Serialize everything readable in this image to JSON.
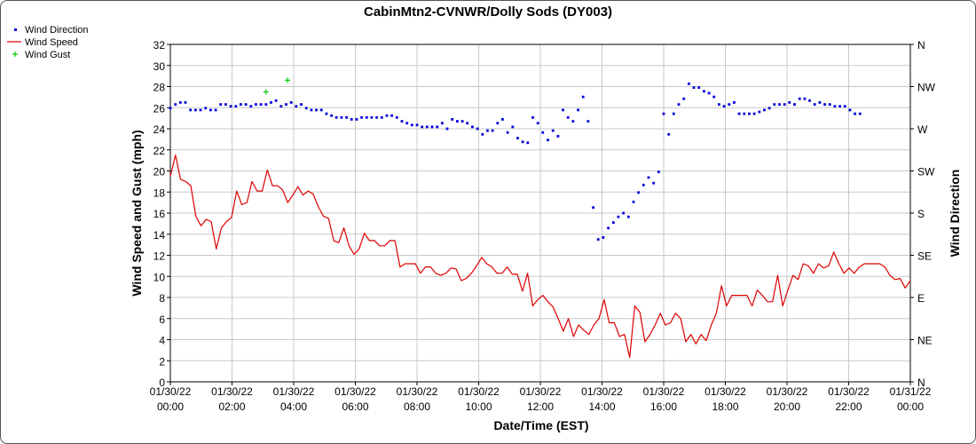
{
  "colors": {
    "direction": "#0000dd",
    "speed": "#dd0000",
    "gust": "#00cc00",
    "grid": "#c8c8c8"
  },
  "chart_data": {
    "type": "line",
    "title": "CabinMtn2-CVNWR/Dolly Sods (DY003)",
    "xlabel": "Date/Time (EST)",
    "ylabel": "Wind Speed and Gust (mph)",
    "y2label": "Wind Direction",
    "ylim": [
      0,
      32
    ],
    "yticks": [
      "0",
      "2",
      "4",
      "6",
      "8",
      "10",
      "12",
      "14",
      "16",
      "18",
      "20",
      "22",
      "24",
      "26",
      "28",
      "30",
      "32"
    ],
    "y2ticks": [
      "N",
      "NE",
      "E",
      "SE",
      "S",
      "SW",
      "W",
      "NW",
      "N"
    ],
    "xlim_hours": [
      0,
      24
    ],
    "xticks": [
      {
        "date": "01/30/22",
        "time": "00:00"
      },
      {
        "date": "01/30/22",
        "time": "02:00"
      },
      {
        "date": "01/30/22",
        "time": "04:00"
      },
      {
        "date": "01/30/22",
        "time": "06:00"
      },
      {
        "date": "01/30/22",
        "time": "08:00"
      },
      {
        "date": "01/30/22",
        "time": "10:00"
      },
      {
        "date": "01/30/22",
        "time": "12:00"
      },
      {
        "date": "01/30/22",
        "time": "14:00"
      },
      {
        "date": "01/30/22",
        "time": "16:00"
      },
      {
        "date": "01/30/22",
        "time": "18:00"
      },
      {
        "date": "01/30/22",
        "time": "20:00"
      },
      {
        "date": "01/30/22",
        "time": "22:00"
      },
      {
        "date": "01/31/22",
        "time": "00:00"
      }
    ],
    "legend_position": "top-left",
    "grid": true,
    "series": [
      {
        "name": "Wind Speed",
        "style": "line",
        "axis": "left",
        "values": [
          19.5,
          21.5,
          19.2,
          19.0,
          18.6,
          15.7,
          14.8,
          15.4,
          15.2,
          12.6,
          14.6,
          15.2,
          15.6,
          18.1,
          16.8,
          17.0,
          19.0,
          18.1,
          18.1,
          20.1,
          18.6,
          18.6,
          18.2,
          17.0,
          17.7,
          18.5,
          17.7,
          18.1,
          17.8,
          16.6,
          15.7,
          15.5,
          13.4,
          13.2,
          14.6,
          12.9,
          12.1,
          12.6,
          14.1,
          13.4,
          13.4,
          12.9,
          12.9,
          13.4,
          13.4,
          10.9,
          11.2,
          11.2,
          11.2,
          10.3,
          10.9,
          10.9,
          10.3,
          10.1,
          10.3,
          10.8,
          10.7,
          9.6,
          9.8,
          10.3,
          11.0,
          11.8,
          11.2,
          10.9,
          10.3,
          10.3,
          10.9,
          10.2,
          10.2,
          8.6,
          10.3,
          7.2,
          7.8,
          8.2,
          7.6,
          7.1,
          6.0,
          4.8,
          6.0,
          4.3,
          5.4,
          4.9,
          4.5,
          5.4,
          6.0,
          7.8,
          5.6,
          5.6,
          4.3,
          4.5,
          2.3,
          7.2,
          6.6,
          3.8,
          4.5,
          5.4,
          6.5,
          5.4,
          5.6,
          6.5,
          6.0,
          3.8,
          4.5,
          3.6,
          4.5,
          3.9,
          5.4,
          6.5,
          9.1,
          7.2,
          8.2,
          8.2,
          8.2,
          8.2,
          7.2,
          8.7,
          8.2,
          7.6,
          7.6,
          10.1,
          7.2,
          8.7,
          10.1,
          9.7,
          11.2,
          11.0,
          10.3,
          11.2,
          10.8,
          11.0,
          12.3,
          11.2,
          10.3,
          10.8,
          10.3,
          10.9,
          11.2,
          11.2,
          11.2,
          11.2,
          10.9,
          10.1,
          9.7,
          9.8,
          8.9,
          9.6
        ]
      },
      {
        "name": "Wind Direction",
        "style": "dots",
        "axis": "right",
        "values": [
          292,
          296,
          298,
          298,
          290,
          290,
          290,
          292,
          290,
          290,
          296,
          296,
          294,
          294,
          296,
          296,
          294,
          296,
          296,
          296,
          298,
          300,
          294,
          296,
          298,
          294,
          296,
          292,
          290,
          290,
          290,
          286,
          284,
          282,
          282,
          282,
          280,
          280,
          282,
          282,
          282,
          282,
          282,
          284,
          284,
          282,
          278,
          276,
          274,
          274,
          272,
          272,
          272,
          272,
          276,
          270,
          280,
          278,
          278,
          276,
          272,
          270,
          264,
          268,
          268,
          276,
          280,
          266,
          272,
          260,
          256,
          255,
          282,
          276,
          266,
          258,
          268,
          262,
          290,
          282,
          278,
          290,
          304,
          278,
          186,
          152,
          154,
          164,
          170,
          176,
          180,
          176,
          192,
          202,
          210,
          218,
          212,
          224,
          286,
          264,
          286,
          296,
          302,
          318,
          314,
          314,
          310,
          308,
          304,
          296,
          294,
          296,
          298,
          286,
          286,
          286,
          286,
          288,
          290,
          292,
          296,
          296,
          296,
          298,
          296,
          302,
          302,
          300,
          296,
          298,
          296,
          296,
          294,
          294,
          294,
          290,
          286,
          286,
          null,
          null,
          null,
          null,
          null,
          null,
          null,
          null,
          null,
          null
        ]
      },
      {
        "name": "Wind Gust",
        "style": "plus",
        "axis": "left",
        "points": [
          [
            3.1,
            27.5
          ],
          [
            3.8,
            28.6
          ]
        ]
      }
    ]
  }
}
